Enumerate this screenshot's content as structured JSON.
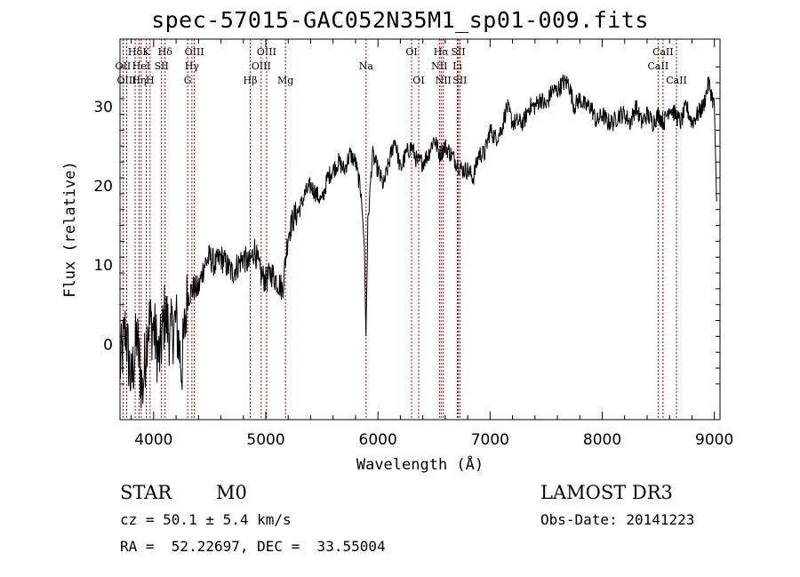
{
  "title": "spec-57015-GAC052N35M1_sp01-009.fits",
  "info": {
    "class": "STAR",
    "subclass": "M0",
    "cz": "cz = 50.1 ± 5.4 km/s",
    "radec": "RA =  52.22697, DEC =  33.55004",
    "survey": "LAMOST DR3",
    "obsdate": "Obs-Date: 20141223"
  },
  "chart_data": {
    "type": "line",
    "title": "spec-57015-GAC052N35M1_sp01-009.fits",
    "xlabel": "Wavelength (Å)",
    "ylabel": "Flux (relative)",
    "xlim": [
      3700,
      9050
    ],
    "ylim": [
      -9.5,
      38.5
    ],
    "xticks": [
      4000,
      5000,
      6000,
      7000,
      8000,
      9000
    ],
    "yticks": [
      0,
      10,
      20,
      30
    ],
    "grid": false,
    "line_color": "#000000",
    "marker_color": "#b00000",
    "series": [
      {
        "x": [
          3700,
          3750,
          3800,
          3850,
          3900,
          3950,
          4000,
          4050,
          4100,
          4150,
          4200,
          4250,
          4300,
          4350,
          4400,
          4450,
          4500,
          4550,
          4600,
          4650,
          4700,
          4750,
          4800,
          4850,
          4900,
          4950,
          5000,
          5050,
          5100,
          5150,
          5200,
          5250,
          5300,
          5350,
          5400,
          5450,
          5500,
          5550,
          5600,
          5650,
          5700,
          5750,
          5800,
          5850,
          5880,
          5893,
          5910,
          5950,
          6000,
          6050,
          6100,
          6150,
          6200,
          6250,
          6300,
          6350,
          6400,
          6450,
          6500,
          6550,
          6600,
          6650,
          6700,
          6750,
          6800,
          6850,
          6900,
          6950,
          7000,
          7050,
          7100,
          7150,
          7200,
          7250,
          7300,
          7350,
          7400,
          7450,
          7500,
          7550,
          7600,
          7650,
          7700,
          7750,
          7800,
          7850,
          7900,
          7950,
          8000,
          8050,
          8100,
          8150,
          8200,
          8250,
          8300,
          8350,
          8400,
          8450,
          8500,
          8550,
          8600,
          8650,
          8700,
          8750,
          8800,
          8850,
          8900,
          8950,
          9000,
          9020
        ],
        "y": [
          -3,
          2,
          -5,
          1,
          -6,
          3,
          2,
          -2,
          4,
          1,
          3,
          -3,
          6,
          7,
          7,
          10,
          11,
          10,
          11,
          10,
          9,
          10,
          11,
          10,
          12,
          9,
          8,
          9,
          8,
          7,
          14,
          16,
          17,
          19,
          20,
          19,
          18,
          21,
          22,
          23,
          22,
          24,
          23,
          19,
          12,
          1,
          15,
          24,
          22,
          20,
          23,
          26,
          22,
          24,
          25,
          23,
          23,
          24,
          26,
          24,
          25,
          24,
          23,
          22,
          22,
          21,
          24,
          24,
          27,
          26,
          27,
          30,
          28,
          28,
          28,
          30,
          30,
          31,
          30,
          32,
          32,
          33,
          33,
          30,
          31,
          30,
          30,
          28,
          29,
          28,
          28,
          29,
          29,
          28,
          30,
          28,
          29,
          28,
          29,
          28,
          30,
          29,
          28,
          30,
          28,
          29,
          30,
          33,
          30,
          18
        ],
        "name": ""
      }
    ],
    "lines": [
      {
        "label": "Hδ",
        "x": 3835,
        "row": 0
      },
      {
        "label": "OII",
        "x": 3727,
        "row": 1
      },
      {
        "label": "OIII",
        "x": 3760,
        "row": 2
      },
      {
        "label": "Hη",
        "x": 3870,
        "row": 2
      },
      {
        "label": "HeI",
        "x": 3889,
        "row": 1
      },
      {
        "label": "K",
        "x": 3934,
        "row": 0
      },
      {
        "label": "H",
        "x": 3968,
        "row": 2
      },
      {
        "label": "SII",
        "x": 4070,
        "row": 1
      },
      {
        "label": "Hδ",
        "x": 4102,
        "row": 0
      },
      {
        "label": "G",
        "x": 4304,
        "row": 2
      },
      {
        "label": "OIII",
        "x": 4363,
        "row": 0
      },
      {
        "label": "Hγ",
        "x": 4341,
        "row": 1
      },
      {
        "label": "Hβ",
        "x": 4861,
        "row": 2
      },
      {
        "label": "OIII",
        "x": 5007,
        "row": 0
      },
      {
        "label": "OIII",
        "x": 4959,
        "row": 1
      },
      {
        "label": "Mg",
        "x": 5175,
        "row": 2
      },
      {
        "label": "Na",
        "x": 5894,
        "row": 1
      },
      {
        "label": "OI",
        "x": 6300,
        "row": 0
      },
      {
        "label": "OI",
        "x": 6363,
        "row": 2
      },
      {
        "label": "Hα",
        "x": 6563,
        "row": 0
      },
      {
        "label": "NII",
        "x": 6548,
        "row": 1
      },
      {
        "label": "NII",
        "x": 6583,
        "row": 2
      },
      {
        "label": "SII",
        "x": 6717,
        "row": 0
      },
      {
        "label": "Li",
        "x": 6708,
        "row": 1
      },
      {
        "label": "SII",
        "x": 6731,
        "row": 2
      },
      {
        "label": "CaII",
        "x": 8542,
        "row": 0
      },
      {
        "label": "CaII",
        "x": 8498,
        "row": 1
      },
      {
        "label": "CaII",
        "x": 8662,
        "row": 2
      }
    ]
  }
}
